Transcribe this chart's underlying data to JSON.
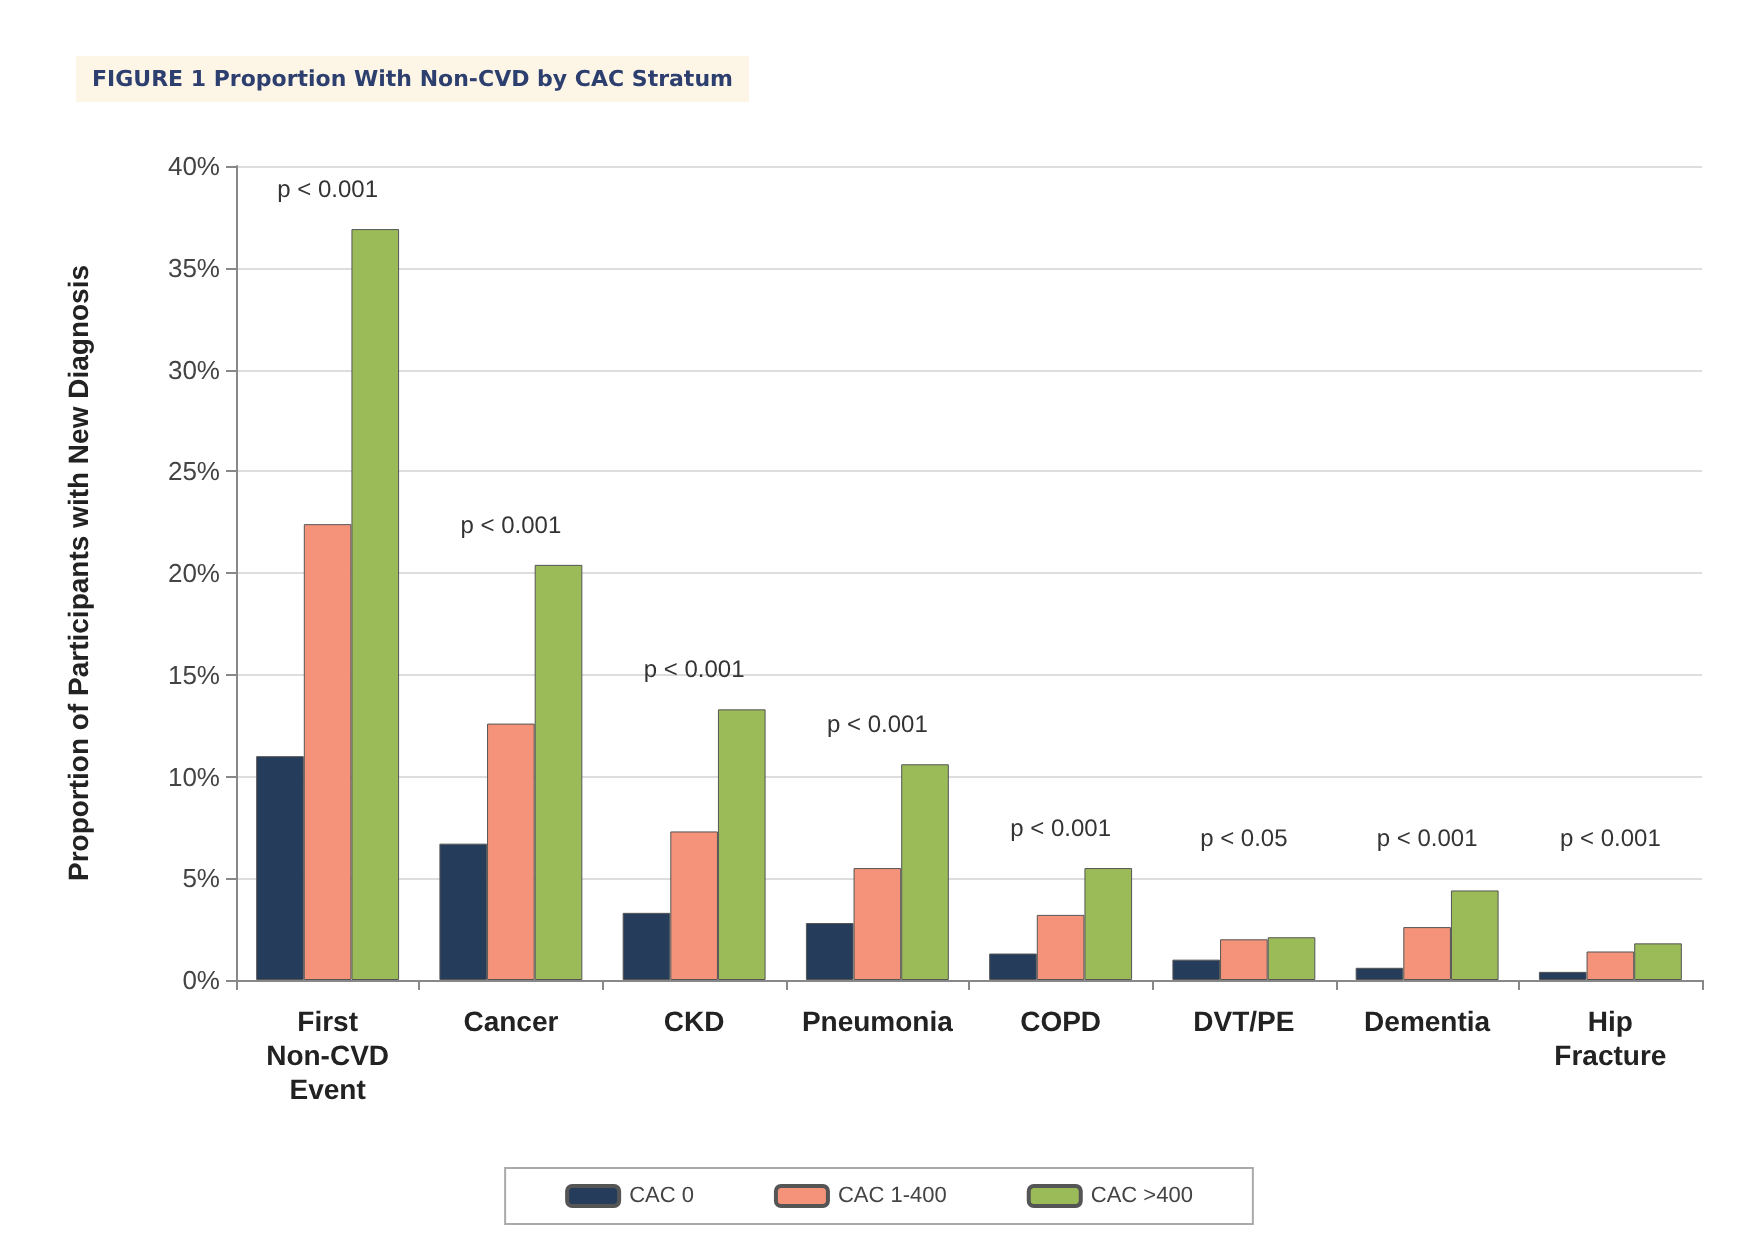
{
  "chart_data": {
    "type": "bar",
    "title": "FIGURE 1 Proportion With Non-CVD by CAC Stratum",
    "ylabel": "Proportion of Participants with New Diagnosis",
    "categories": [
      "First\nNon-CVD\nEvent",
      "Cancer",
      "CKD",
      "Pneumonia",
      "COPD",
      "DVT/PE",
      "Dementia",
      "Hip\nFracture"
    ],
    "series": [
      {
        "name": "CAC 0",
        "color": "#253d5b",
        "values": [
          11.0,
          6.7,
          3.3,
          2.8,
          1.3,
          1.0,
          0.6,
          0.4
        ]
      },
      {
        "name": "CAC 1-400",
        "color": "#f4937a",
        "values": [
          22.4,
          12.6,
          7.3,
          5.5,
          3.2,
          2.0,
          2.6,
          1.4
        ]
      },
      {
        "name": "CAC >400",
        "color": "#9bbb59",
        "values": [
          36.9,
          20.4,
          13.3,
          10.6,
          5.5,
          2.1,
          4.4,
          1.8
        ]
      }
    ],
    "ylim": [
      0,
      40
    ],
    "yticks": [
      {
        "value": 0,
        "label": "0%"
      },
      {
        "value": 5,
        "label": "5%"
      },
      {
        "value": 10,
        "label": "10%"
      },
      {
        "value": 15,
        "label": "15%"
      },
      {
        "value": 20,
        "label": "20%"
      },
      {
        "value": 25,
        "label": "25%"
      },
      {
        "value": 30,
        "label": "30%"
      },
      {
        "value": 35,
        "label": "35%"
      },
      {
        "value": 40,
        "label": "40%"
      }
    ],
    "annotations": [
      "p < 0.001",
      "p < 0.001",
      "p < 0.001",
      "p < 0.001",
      "p < 0.001",
      "p < 0.05",
      "p < 0.001",
      "p < 0.001"
    ],
    "grid": "y",
    "legend": "bottom"
  }
}
